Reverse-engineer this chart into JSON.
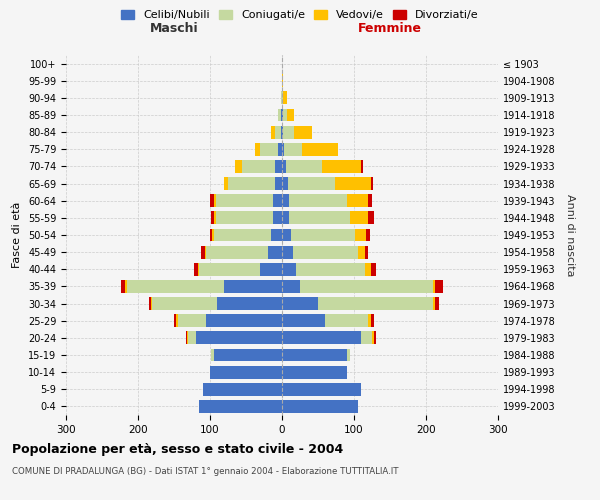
{
  "age_groups": [
    "0-4",
    "5-9",
    "10-14",
    "15-19",
    "20-24",
    "25-29",
    "30-34",
    "35-39",
    "40-44",
    "45-49",
    "50-54",
    "55-59",
    "60-64",
    "65-69",
    "70-74",
    "75-79",
    "80-84",
    "85-89",
    "90-94",
    "95-99",
    "100+"
  ],
  "birth_years": [
    "1999-2003",
    "1994-1998",
    "1989-1993",
    "1984-1988",
    "1979-1983",
    "1974-1978",
    "1969-1973",
    "1964-1968",
    "1959-1963",
    "1954-1958",
    "1949-1953",
    "1944-1948",
    "1939-1943",
    "1934-1938",
    "1929-1933",
    "1924-1928",
    "1919-1923",
    "1914-1918",
    "1909-1913",
    "1904-1908",
    "≤ 1903"
  ],
  "maschi": {
    "celibi": [
      115,
      110,
      100,
      95,
      120,
      105,
      90,
      80,
      30,
      20,
      15,
      12,
      12,
      10,
      10,
      5,
      2,
      2,
      0,
      0,
      0
    ],
    "coniugati": [
      0,
      0,
      0,
      3,
      10,
      40,
      90,
      135,
      85,
      85,
      80,
      80,
      80,
      65,
      45,
      25,
      8,
      3,
      2,
      0,
      0
    ],
    "vedovi": [
      0,
      0,
      0,
      0,
      2,
      2,
      2,
      3,
      2,
      2,
      2,
      2,
      3,
      5,
      10,
      8,
      5,
      0,
      0,
      0,
      0
    ],
    "divorziati": [
      0,
      0,
      0,
      0,
      2,
      3,
      3,
      5,
      5,
      5,
      3,
      5,
      5,
      0,
      0,
      0,
      0,
      0,
      0,
      0,
      0
    ]
  },
  "femmine": {
    "nubili": [
      105,
      110,
      90,
      90,
      110,
      60,
      50,
      25,
      20,
      15,
      12,
      10,
      10,
      8,
      5,
      3,
      2,
      2,
      0,
      0,
      0
    ],
    "coniugate": [
      0,
      0,
      0,
      5,
      15,
      60,
      160,
      185,
      95,
      90,
      90,
      85,
      80,
      65,
      50,
      25,
      15,
      5,
      2,
      0,
      0
    ],
    "vedove": [
      0,
      0,
      0,
      0,
      3,
      3,
      3,
      3,
      8,
      10,
      15,
      25,
      30,
      50,
      55,
      50,
      25,
      10,
      5,
      1,
      0
    ],
    "divorziate": [
      0,
      0,
      0,
      0,
      2,
      5,
      5,
      10,
      8,
      5,
      5,
      8,
      5,
      3,
      3,
      0,
      0,
      0,
      0,
      0,
      0
    ]
  },
  "colors": {
    "celibi": "#4472c4",
    "coniugati": "#c5d9a0",
    "vedovi": "#ffc000",
    "divorziati": "#cc0000"
  },
  "title": "Popolazione per età, sesso e stato civile - 2004",
  "subtitle": "COMUNE DI PRADALUNGA (BG) - Dati ISTAT 1° gennaio 2004 - Elaborazione TUTTITALIA.IT",
  "xlabel_left": "Maschi",
  "xlabel_right": "Femmine",
  "ylabel_left": "Fasce di età",
  "ylabel_right": "Anni di nascita",
  "legend_labels": [
    "Celibi/Nubili",
    "Coniugati/e",
    "Vedovi/e",
    "Divorziati/e"
  ],
  "xlim": 300,
  "background_color": "#f5f5f5",
  "grid_color": "#cccccc"
}
